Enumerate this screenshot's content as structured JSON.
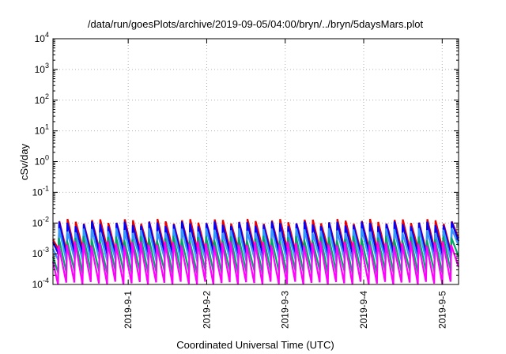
{
  "chart_data": {
    "type": "line",
    "title": "/data/run/goesPlots/archive/2019-09-05/04:00/bryn/../bryn/5daysMars.plot",
    "xlabel": "Coordinated Universal Time (UTC)",
    "ylabel": "cSv/day",
    "yscale": "log",
    "ylim": [
      0.0001,
      10000
    ],
    "xlim": [
      "2019-08-31T01:00",
      "2019-09-05T05:00"
    ],
    "grid": true,
    "x_ticks": [
      {
        "label": "2019-9-1",
        "x": "2019-09-01T00:00"
      },
      {
        "label": "2019-9-2",
        "x": "2019-09-02T00:00"
      },
      {
        "label": "2019-9-3",
        "x": "2019-09-03T00:00"
      },
      {
        "label": "2019-9-4",
        "x": "2019-09-04T00:00"
      },
      {
        "label": "2019-9-5",
        "x": "2019-09-05T00:00"
      }
    ],
    "y_ticks": [
      {
        "base": "10",
        "exp": "-4",
        "value": 0.0001
      },
      {
        "base": "10",
        "exp": "-3",
        "value": 0.001
      },
      {
        "base": "10",
        "exp": "-2",
        "value": 0.01
      },
      {
        "base": "10",
        "exp": "-1",
        "value": 0.1
      },
      {
        "base": "10",
        "exp": "0",
        "value": 1
      },
      {
        "base": "10",
        "exp": "1",
        "value": 10
      },
      {
        "base": "10",
        "exp": "2",
        "value": 100
      },
      {
        "base": "10",
        "exp": "3",
        "value": 1000
      },
      {
        "base": "10",
        "exp": "4",
        "value": 10000
      }
    ],
    "sawtooth_period_hours": 2.5,
    "series": [
      {
        "color": "#ee0000",
        "peak": 0.0115,
        "trough": 0.0012
      },
      {
        "color": "#0000ff",
        "peak": 0.0095,
        "trough": 0.0009
      },
      {
        "color": "#3399ff",
        "peak": 0.0058,
        "trough": 0.0006
      },
      {
        "color": "#00aa66",
        "peak": 0.0032,
        "trough": 0.00025
      },
      {
        "color": "#ff00ff",
        "peak": 0.0022,
        "trough": 0.00011
      }
    ]
  }
}
